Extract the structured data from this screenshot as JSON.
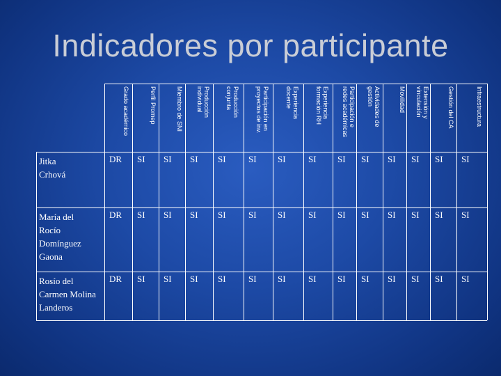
{
  "title": "Indicadores por participante",
  "columns": [
    "Grado académico",
    "Perfil Promep",
    "Miembro de SNI",
    "Producción\nindividual",
    "Producción\nconjunta",
    "Participación en\nproyectos de inv.",
    "Experiencia\ndocente",
    "Experiencia\nformación RH",
    "Participación e\nredes académicas",
    "Actividades de\ngestión",
    "Movilidad",
    "Extensión y\nvinculación",
    "Gestión del CA",
    "Infraestructura"
  ],
  "rows": [
    {
      "name": "Jitka\nCrhová",
      "values": [
        "DR",
        "SI",
        "SI",
        "SI",
        "SI",
        "SI",
        "SI",
        "SI",
        "SI",
        "SI",
        "SI",
        "SI",
        "SI",
        "SI"
      ]
    },
    {
      "name": "María del\nRocío\nDomínguez\nGaona",
      "values": [
        "DR",
        "SI",
        "SI",
        "SI",
        "SI",
        "SI",
        "SI",
        "SI",
        "SI",
        "SI",
        "SI",
        "SI",
        "SI",
        "SI"
      ]
    },
    {
      "name": "Rosío del\nCarmen Molina\nLanderos",
      "values": [
        "DR",
        "SI",
        "SI",
        "SI",
        "SI",
        "SI",
        "SI",
        "SI",
        "SI",
        "SI",
        "SI",
        "SI",
        "SI",
        "SI"
      ]
    }
  ]
}
